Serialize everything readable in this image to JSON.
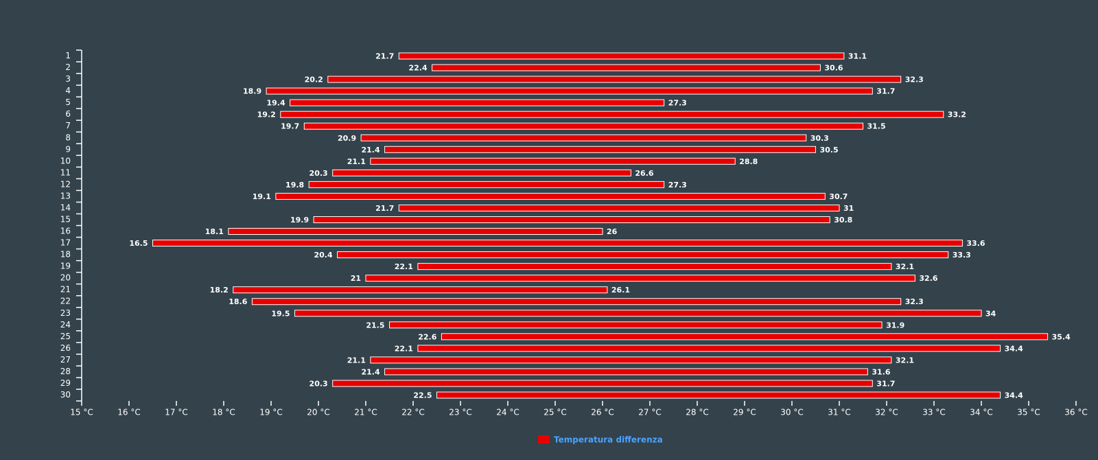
{
  "chart_data": {
    "type": "bar",
    "orientation": "horizontal",
    "subtype": "floating-range",
    "categories": [
      "1",
      "2",
      "3",
      "4",
      "5",
      "6",
      "7",
      "8",
      "9",
      "10",
      "11",
      "12",
      "13",
      "14",
      "15",
      "16",
      "17",
      "18",
      "19",
      "20",
      "21",
      "22",
      "23",
      "24",
      "25",
      "26",
      "27",
      "28",
      "29",
      "30"
    ],
    "series": [
      {
        "name": "Temperatura differenza",
        "color": "#e60000",
        "low": [
          21.7,
          22.4,
          20.2,
          18.9,
          19.4,
          19.2,
          19.7,
          20.9,
          21.4,
          21.1,
          20.3,
          19.8,
          19.1,
          21.7,
          19.9,
          18.1,
          16.5,
          20.4,
          22.1,
          21,
          18.2,
          18.6,
          19.5,
          21.5,
          22.6,
          22.1,
          21.1,
          21.4,
          20.3,
          22.5
        ],
        "high": [
          31.1,
          30.6,
          32.3,
          31.7,
          27.3,
          33.2,
          31.5,
          30.3,
          30.5,
          28.8,
          26.6,
          27.3,
          30.7,
          31,
          30.8,
          26,
          33.6,
          33.3,
          32.1,
          32.6,
          26.1,
          32.3,
          34,
          31.9,
          35.4,
          34.4,
          32.1,
          31.6,
          31.7,
          34.4
        ]
      }
    ],
    "x_ticks": [
      "15 °C",
      "16 °C",
      "17 °C",
      "18 °C",
      "19 °C",
      "20 °C",
      "21 °C",
      "22 °C",
      "23 °C",
      "24 °C",
      "25 °C",
      "26 °C",
      "27 °C",
      "28 °C",
      "29 °C",
      "30 °C",
      "31 °C",
      "32 °C",
      "33 °C",
      "34 °C",
      "35 °C",
      "36 °C"
    ],
    "xlim": [
      15,
      36
    ],
    "x_unit": "°C",
    "grid": false,
    "legend_position": "bottom-center",
    "legend_text_color": "#4aa3ff",
    "axis_color": "#ffffff",
    "background": "#33424b"
  }
}
